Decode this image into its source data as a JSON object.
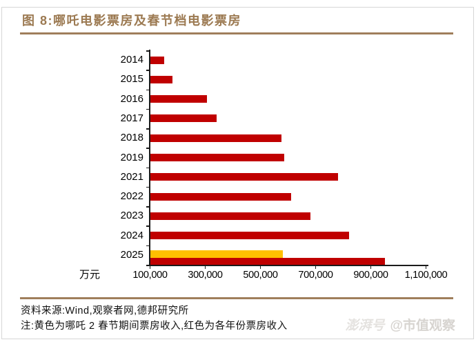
{
  "page": {
    "title": "图 8:哪吒电影票房及春节档电影票房",
    "source_line": "资料来源:Wind,观察者网,德邦研究所",
    "note_line": "注:黄色为哪吒 2 春节期间票房收入,红色为各年份票房收入",
    "watermark_prefix": "澎湃号",
    "watermark_handle": "@市值观察"
  },
  "chart_data": {
    "type": "bar",
    "orientation": "horizontal",
    "title": "哪吒电影票房及春节档电影票房",
    "unit_label": "万元",
    "categories": [
      "2014",
      "2015",
      "2016",
      "2017",
      "2018",
      "2019",
      "2021",
      "2022",
      "2023",
      "2024",
      "2025"
    ],
    "series": [
      {
        "name": "各年份春节档票房收入",
        "color": "#C00000",
        "values": [
          150000,
          180000,
          305000,
          340000,
          575000,
          585000,
          780000,
          610000,
          680000,
          820000,
          950000
        ]
      },
      {
        "name": "哪吒2春节期间票房收入",
        "color": "#FFC000",
        "values": [
          null,
          null,
          null,
          null,
          null,
          null,
          null,
          null,
          null,
          null,
          580000
        ]
      }
    ],
    "x_axis": {
      "min": 100000,
      "max": 1100000,
      "tick_interval": 200000,
      "tick_labels": [
        "100,000",
        "300,000",
        "500,000",
        "700,000",
        "900,000",
        "1,100,000"
      ]
    },
    "legend": "none",
    "grid": false
  }
}
